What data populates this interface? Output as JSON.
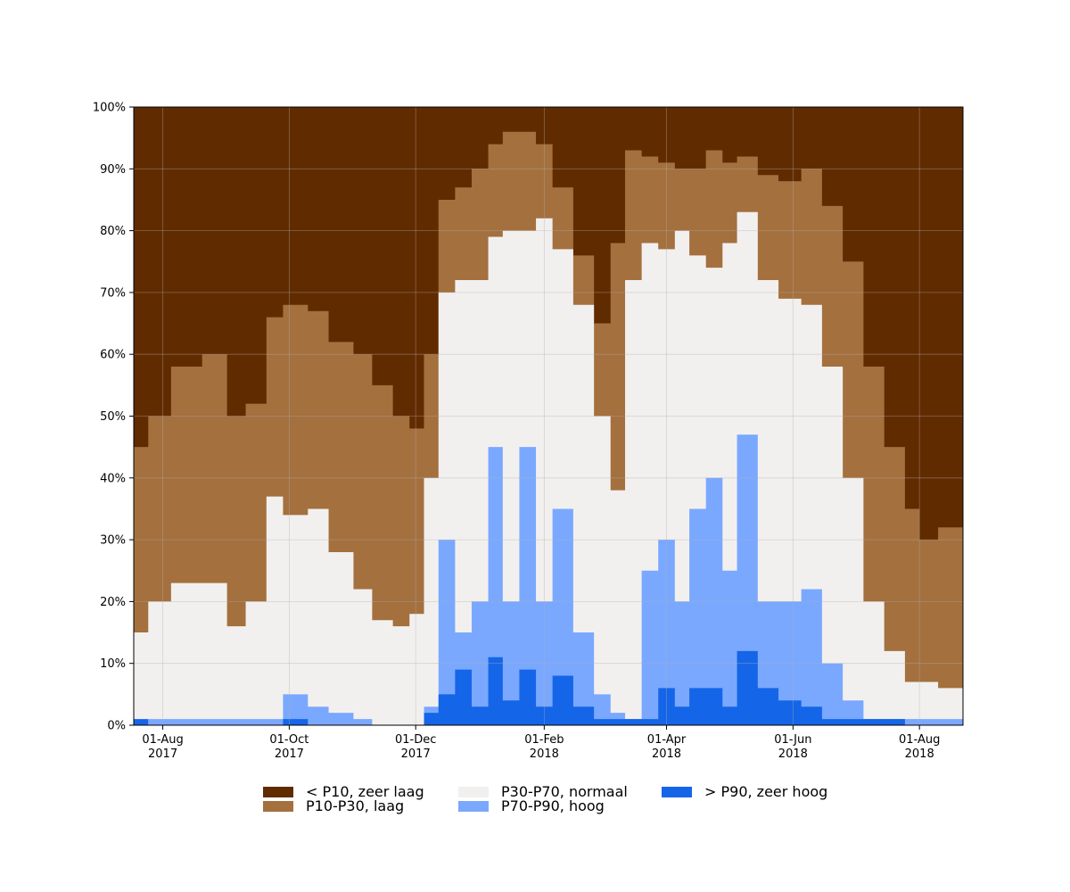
{
  "chart_data": {
    "type": "area",
    "stacked": true,
    "normalized": true,
    "title": "",
    "xlabel": "",
    "ylabel": "",
    "ylim": [
      0,
      100
    ],
    "yticks": [
      "0%",
      "10%",
      "20%",
      "30%",
      "40%",
      "50%",
      "60%",
      "70%",
      "80%",
      "90%",
      "100%"
    ],
    "xlim": [
      "2017-07-18",
      "2018-08-22"
    ],
    "xticks": [
      {
        "date": "2017-08-01",
        "line1": "01-Aug",
        "line2": "2017"
      },
      {
        "date": "2017-10-01",
        "line1": "01-Oct",
        "line2": "2017"
      },
      {
        "date": "2017-12-01",
        "line1": "01-Dec",
        "line2": "2017"
      },
      {
        "date": "2018-02-01",
        "line1": "01-Feb",
        "line2": "2018"
      },
      {
        "date": "2018-04-01",
        "line1": "01-Apr",
        "line2": "2018"
      },
      {
        "date": "2018-06-01",
        "line1": "01-Jun",
        "line2": "2018"
      },
      {
        "date": "2018-08-01",
        "line1": "01-Aug",
        "line2": "2018"
      }
    ],
    "grid": true,
    "legend_position": "bottom",
    "cumulative_boundaries_note_units": "percent",
    "x": [
      "2017-07-18",
      "2017-07-25",
      "2017-08-05",
      "2017-08-20",
      "2017-09-01",
      "2017-09-10",
      "2017-09-20",
      "2017-09-28",
      "2017-10-10",
      "2017-10-20",
      "2017-11-01",
      "2017-11-10",
      "2017-11-20",
      "2017-11-28",
      "2017-12-05",
      "2017-12-12",
      "2017-12-20",
      "2017-12-28",
      "2018-01-05",
      "2018-01-12",
      "2018-01-20",
      "2018-01-28",
      "2018-02-05",
      "2018-02-15",
      "2018-02-25",
      "2018-03-05",
      "2018-03-12",
      "2018-03-20",
      "2018-03-28",
      "2018-04-05",
      "2018-04-12",
      "2018-04-20",
      "2018-04-28",
      "2018-05-05",
      "2018-05-15",
      "2018-05-25",
      "2018-06-05",
      "2018-06-15",
      "2018-06-25",
      "2018-07-05",
      "2018-07-15",
      "2018-07-25",
      "2018-08-01",
      "2018-08-10",
      "2018-08-22"
    ],
    "series": [
      {
        "name": "> P90, zeer hoog",
        "color": "#1565e8",
        "values": [
          1,
          0,
          0,
          0,
          0,
          0,
          0,
          1,
          0,
          0,
          0,
          0,
          0,
          0,
          2,
          5,
          9,
          3,
          11,
          4,
          9,
          3,
          8,
          3,
          1,
          1,
          1,
          1,
          6,
          3,
          6,
          6,
          3,
          12,
          6,
          4,
          3,
          1,
          1,
          1,
          1,
          0,
          0,
          0,
          0
        ]
      },
      {
        "name": "P70-P90, hoog",
        "color": "#7aa8ff",
        "values": [
          0,
          1,
          1,
          1,
          1,
          1,
          1,
          5,
          3,
          2,
          1,
          0,
          0,
          0,
          3,
          30,
          15,
          20,
          45,
          20,
          45,
          20,
          35,
          15,
          5,
          2,
          1,
          25,
          30,
          20,
          35,
          40,
          25,
          47,
          20,
          20,
          22,
          10,
          4,
          1,
          1,
          1,
          1,
          1,
          0
        ]
      },
      {
        "name": "P30-P70, normaal",
        "color": "#f2f0ef",
        "values": [
          15,
          20,
          23,
          23,
          16,
          20,
          37,
          34,
          35,
          28,
          22,
          17,
          16,
          18,
          40,
          70,
          72,
          72,
          79,
          80,
          80,
          82,
          77,
          68,
          50,
          38,
          72,
          78,
          77,
          80,
          76,
          74,
          78,
          83,
          72,
          69,
          68,
          58,
          40,
          20,
          12,
          7,
          7,
          6,
          12
        ]
      },
      {
        "name": "P10-P30, laag",
        "color": "#a4703e",
        "values": [
          45,
          50,
          58,
          60,
          50,
          52,
          66,
          68,
          67,
          62,
          60,
          55,
          50,
          48,
          60,
          85,
          87,
          90,
          94,
          96,
          96,
          94,
          87,
          76,
          65,
          78,
          93,
          92,
          91,
          90,
          90,
          93,
          91,
          92,
          89,
          88,
          90,
          84,
          75,
          58,
          45,
          35,
          30,
          32,
          40
        ]
      },
      {
        "name": "< P10, zeer laag",
        "color": "#612b00",
        "values": [
          100,
          100,
          100,
          100,
          100,
          100,
          100,
          100,
          100,
          100,
          100,
          100,
          100,
          100,
          100,
          100,
          100,
          100,
          100,
          100,
          100,
          100,
          100,
          100,
          100,
          100,
          100,
          100,
          100,
          100,
          100,
          100,
          100,
          100,
          100,
          100,
          100,
          100,
          100,
          100,
          100,
          100,
          100,
          100,
          100
        ]
      }
    ]
  },
  "legend": [
    {
      "label": "< P10, zeer laag",
      "color": "#612b00"
    },
    {
      "label": "P10-P30, laag",
      "color": "#a4703e"
    },
    {
      "label": "P30-P70, normaal",
      "color": "#f2f0ef"
    },
    {
      "label": "P70-P90, hoog",
      "color": "#7aa8ff"
    },
    {
      "label": "> P90, zeer hoog",
      "color": "#1565e8"
    }
  ]
}
